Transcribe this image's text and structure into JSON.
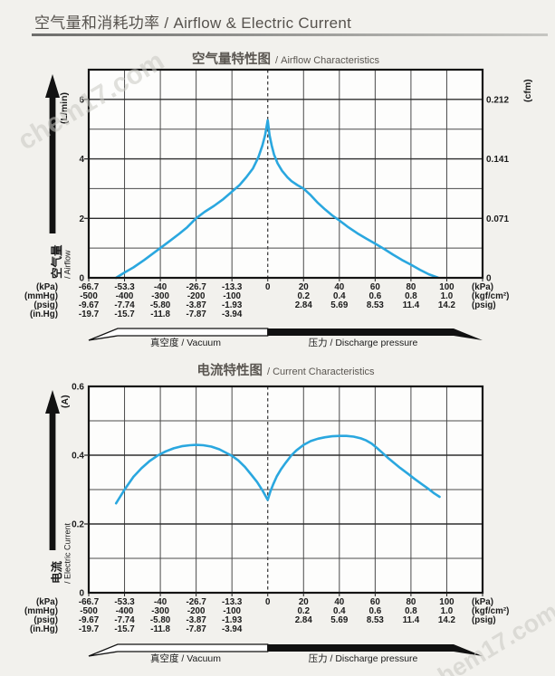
{
  "page": {
    "background": "#f2f1ed",
    "watermark": "chem17.com"
  },
  "header": {
    "title": "空气量和消耗功率 / Airflow & Electric Current"
  },
  "x_axis": {
    "unit_left": [
      "(kPa)",
      "(mmHg)",
      "(psig)",
      "(in.Hg)"
    ],
    "unit_right": [
      "(kPa)",
      "(kgf/cm²)",
      "(psig)",
      ""
    ],
    "zero_label": "0",
    "rows": [
      {
        "left": [
          "-66.7",
          "-53.3",
          "-40",
          "-26.7",
          "-13.3"
        ],
        "right": [
          "20",
          "40",
          "60",
          "80",
          "100"
        ]
      },
      {
        "left": [
          "-500",
          "-400",
          "-300",
          "-200",
          "-100"
        ],
        "right": [
          "0.2",
          "0.4",
          "0.6",
          "0.8",
          "1.0"
        ]
      },
      {
        "left": [
          "-9.67",
          "-7.74",
          "-5.80",
          "-3.87",
          "-1.93"
        ],
        "right": [
          "2.84",
          "5.69",
          "8.53",
          "11.4",
          "14.2"
        ]
      },
      {
        "left": [
          "-19.7",
          "-15.7",
          "-11.8",
          "-7.87",
          "-3.94"
        ],
        "right": []
      }
    ],
    "vacuum_label": "真空度 / Vacuum",
    "pressure_label": "压力 / Discharge pressure"
  },
  "chart_data": [
    {
      "type": "line",
      "title": "空气量特性图",
      "subtitle": "/ Airflow Characteristics",
      "ylabel_zh": "空气量",
      "ylabel_en": "/ Airflow",
      "xlabel": "Vacuum / Discharge pressure (kPa)",
      "x_range_kpa": [
        -66.7,
        120
      ],
      "y_left": {
        "unit": "(L/min)",
        "max": 7,
        "step": 1,
        "labeled": [
          6,
          4,
          2,
          0
        ]
      },
      "y_right": {
        "unit": "(cfm)",
        "ticks": [
          {
            "at": 6,
            "label": "0.212"
          },
          {
            "at": 4,
            "label": "0.141"
          },
          {
            "at": 2,
            "label": "0.071"
          },
          {
            "at": 0,
            "label": "0"
          }
        ]
      },
      "series": [
        {
          "name": "airflow",
          "color": "#2aa7df",
          "points": [
            [
              -56.5,
              0
            ],
            [
              -53.3,
              0.18
            ],
            [
              -50,
              0.35
            ],
            [
              -46,
              0.6
            ],
            [
              -43,
              0.8
            ],
            [
              -40,
              1.0
            ],
            [
              -36.5,
              1.24
            ],
            [
              -33,
              1.48
            ],
            [
              -30,
              1.7
            ],
            [
              -26.7,
              2.0
            ],
            [
              -23.5,
              2.22
            ],
            [
              -20,
              2.42
            ],
            [
              -16.5,
              2.65
            ],
            [
              -13.3,
              2.9
            ],
            [
              -10.5,
              3.12
            ],
            [
              -8,
              3.38
            ],
            [
              -5.5,
              3.68
            ],
            [
              -3.5,
              4.05
            ],
            [
              -2,
              4.45
            ],
            [
              -1,
              4.8
            ],
            [
              0,
              5.3
            ],
            [
              1,
              4.8
            ],
            [
              2.2,
              4.45
            ],
            [
              3.5,
              4.15
            ],
            [
              5.5,
              3.85
            ],
            [
              8,
              3.6
            ],
            [
              11,
              3.38
            ],
            [
              13.3,
              3.25
            ],
            [
              16.5,
              3.12
            ],
            [
              20,
              3.0
            ],
            [
              24,
              2.78
            ],
            [
              28,
              2.52
            ],
            [
              32,
              2.3
            ],
            [
              36,
              2.1
            ],
            [
              40,
              1.93
            ],
            [
              45,
              1.7
            ],
            [
              50,
              1.5
            ],
            [
              55,
              1.32
            ],
            [
              60,
              1.15
            ],
            [
              65,
              0.97
            ],
            [
              70,
              0.78
            ],
            [
              75,
              0.6
            ],
            [
              80,
              0.44
            ],
            [
              85,
              0.27
            ],
            [
              90,
              0.12
            ],
            [
              95,
              0.01
            ]
          ]
        }
      ]
    },
    {
      "type": "line",
      "title": "电流特性图",
      "subtitle": "/ Current Characteristics",
      "ylabel_zh": "电流",
      "ylabel_en": "/ Electric Current",
      "xlabel": "Vacuum / Discharge pressure (kPa)",
      "x_range_kpa": [
        -66.7,
        120
      ],
      "y_left": {
        "unit": "(A)",
        "max": 0.6,
        "step": 0.1,
        "labeled": [
          0.6,
          0.4,
          0.2,
          0
        ]
      },
      "y_right": null,
      "series": [
        {
          "name": "current",
          "color": "#2aa7df",
          "points": [
            [
              -56.5,
              0.26
            ],
            [
              -53.3,
              0.3
            ],
            [
              -50,
              0.337
            ],
            [
              -47,
              0.362
            ],
            [
              -44,
              0.383
            ],
            [
              -41,
              0.399
            ],
            [
              -38,
              0.411
            ],
            [
              -35,
              0.42
            ],
            [
              -32,
              0.426
            ],
            [
              -29,
              0.429
            ],
            [
              -26.7,
              0.43
            ],
            [
              -24,
              0.429
            ],
            [
              -21,
              0.425
            ],
            [
              -18,
              0.417
            ],
            [
              -15,
              0.405
            ],
            [
              -13.3,
              0.398
            ],
            [
              -11,
              0.385
            ],
            [
              -8.5,
              0.366
            ],
            [
              -6,
              0.342
            ],
            [
              -4,
              0.322
            ],
            [
              -2,
              0.298
            ],
            [
              0,
              0.27
            ],
            [
              1.5,
              0.295
            ],
            [
              3,
              0.315
            ],
            [
              5,
              0.338
            ],
            [
              7.5,
              0.36
            ],
            [
              10,
              0.378
            ],
            [
              13.3,
              0.4
            ],
            [
              16,
              0.414
            ],
            [
              20,
              0.43
            ],
            [
              24,
              0.441
            ],
            [
              28,
              0.448
            ],
            [
              32,
              0.452
            ],
            [
              36,
              0.455
            ],
            [
              40,
              0.456
            ],
            [
              44,
              0.456
            ],
            [
              48,
              0.454
            ],
            [
              52,
              0.449
            ],
            [
              55,
              0.443
            ],
            [
              58,
              0.434
            ],
            [
              61,
              0.421
            ],
            [
              64,
              0.407
            ],
            [
              67,
              0.393
            ],
            [
              70,
              0.38
            ],
            [
              74,
              0.363
            ],
            [
              78,
              0.347
            ],
            [
              82,
              0.331
            ],
            [
              86,
              0.316
            ],
            [
              90,
              0.301
            ],
            [
              93,
              0.289
            ],
            [
              96,
              0.279
            ]
          ]
        }
      ]
    }
  ]
}
